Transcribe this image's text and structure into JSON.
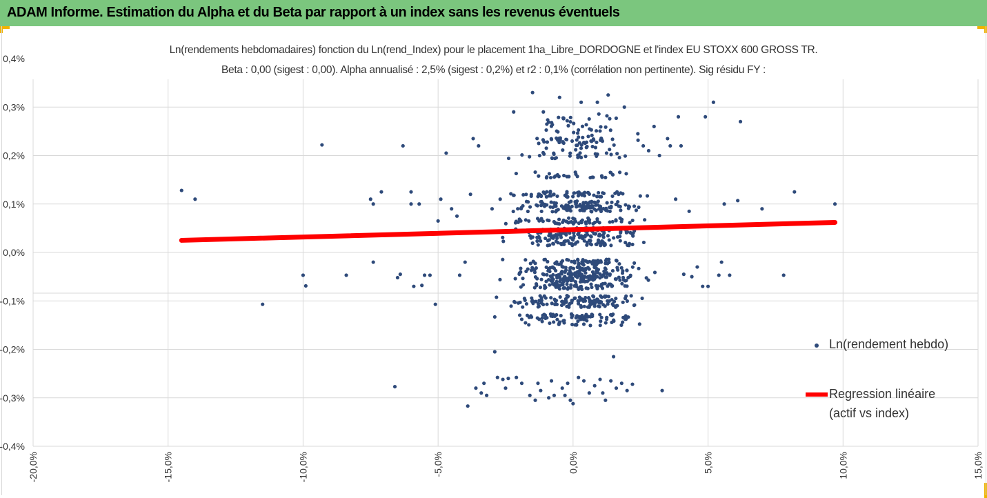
{
  "header": {
    "title": "ADAM Informe. Estimation du Alpha et du Beta par rapport à un index sans les revenus éventuels"
  },
  "colors": {
    "header_bg": "#7bc67e",
    "corner": "#f0b400",
    "points": "#2e4a7a",
    "regression": "#ff0000",
    "grid": "#d9d9d9"
  },
  "chart_data": {
    "type": "scatter",
    "title_line1": "Ln(rendements hebdomadaires) fonction du Ln(rend_Index) pour le placement 1ha_Libre_DORDOGNE et l'index EU STOXX 600 GROSS TR.",
    "title_line2": "Beta : 0,00 (sigest : 0,00). Alpha annualisé : 2,5% (sigest : 0,2%) et r2 : 0,1% (corrélation non pertinente). Sig résidu FY :",
    "xlim": [
      -20,
      15
    ],
    "ylim": [
      -0.4,
      0.4
    ],
    "x_ticks": [
      "-20,0%",
      "-15,0%",
      "-10,0%",
      "-5,0%",
      "0,0%",
      "5,0%",
      "10,0%",
      "15,0%"
    ],
    "y_ticks": [
      "0,4%",
      "0,3%",
      "0,2%",
      "0,1%",
      "0,0%",
      "-0,1%",
      "-0,2%",
      "-0,3%",
      "-0,4%"
    ],
    "grid": true,
    "legend_position": "right",
    "series": [
      {
        "name": "Ln(rendement hebdo)",
        "type": "scatter",
        "points": [
          [
            -14.5,
            0.128
          ],
          [
            -14,
            0.11
          ],
          [
            -11.5,
            -0.107
          ],
          [
            -9.3,
            0.222
          ],
          [
            -10,
            -0.047
          ],
          [
            -9.9,
            -0.069
          ],
          [
            -8.4,
            -0.047
          ],
          [
            -7.5,
            0.11
          ],
          [
            -7.4,
            0.1
          ],
          [
            -7.4,
            -0.02
          ],
          [
            -7.1,
            0.125
          ],
          [
            -6.6,
            -0.277
          ],
          [
            -6.3,
            0.22
          ],
          [
            -6.5,
            -0.052
          ],
          [
            -6.4,
            -0.045
          ],
          [
            -6,
            0.125
          ],
          [
            -6,
            0.1
          ],
          [
            -5.9,
            -0.07
          ],
          [
            -5.7,
            0.1
          ],
          [
            -5.6,
            -0.068
          ],
          [
            -5.5,
            -0.047
          ],
          [
            -5.3,
            -0.047
          ],
          [
            -5.1,
            -0.107
          ],
          [
            -5,
            0.065
          ],
          [
            -4.9,
            0.11
          ],
          [
            -4.7,
            0.205
          ],
          [
            -4.5,
            0.09
          ],
          [
            -4.3,
            0.075
          ],
          [
            -4.2,
            -0.047
          ],
          [
            -4.0,
            -0.02
          ],
          [
            -3.9,
            -0.317
          ],
          [
            -3.8,
            0.12
          ],
          [
            -3.7,
            0.235
          ],
          [
            -3.5,
            0.22
          ],
          [
            -3.6,
            -0.28
          ],
          [
            -3.4,
            -0.29
          ],
          [
            -3.3,
            -0.27
          ],
          [
            -3.2,
            -0.295
          ],
          [
            -3,
            0.09
          ],
          [
            -2.9,
            -0.205
          ],
          [
            -2.9,
            -0.133
          ],
          [
            -2.8,
            -0.258
          ],
          [
            -2.7,
            0.11
          ],
          [
            -2.6,
            -0.262
          ],
          [
            -2.5,
            -0.28
          ],
          [
            -2.4,
            -0.26
          ],
          [
            -2.2,
            0.29
          ],
          [
            -2.1,
            -0.258
          ],
          [
            -1.9,
            -0.27
          ],
          [
            -1.8,
            -0.095
          ],
          [
            -1.6,
            -0.295
          ],
          [
            -1.5,
            0.33
          ],
          [
            -1.4,
            -0.305
          ],
          [
            -1.3,
            -0.27
          ],
          [
            -1.1,
            0.29
          ],
          [
            -1.2,
            -0.285
          ],
          [
            -0.9,
            -0.3
          ],
          [
            -0.8,
            -0.265
          ],
          [
            -0.7,
            -0.295
          ],
          [
            -0.5,
            0.32
          ],
          [
            -0.4,
            -0.28
          ],
          [
            -0.3,
            -0.295
          ],
          [
            -0.2,
            -0.27
          ],
          [
            -0.1,
            -0.305
          ],
          [
            0,
            -0.312
          ],
          [
            0.2,
            -0.258
          ],
          [
            0.3,
            0.31
          ],
          [
            0.4,
            -0.265
          ],
          [
            0.6,
            -0.29
          ],
          [
            0.8,
            -0.275
          ],
          [
            0.9,
            0.31
          ],
          [
            1,
            -0.262
          ],
          [
            1.1,
            -0.29
          ],
          [
            1.2,
            -0.305
          ],
          [
            1.3,
            0.325
          ],
          [
            1.4,
            -0.265
          ],
          [
            1.5,
            -0.215
          ],
          [
            1.6,
            -0.28
          ],
          [
            1.8,
            -0.27
          ],
          [
            1.9,
            0.3
          ],
          [
            2,
            -0.285
          ],
          [
            2.2,
            -0.272
          ],
          [
            2.4,
            0.245
          ],
          [
            2.6,
            0.22
          ],
          [
            2.8,
            0.21
          ],
          [
            3.0,
            0.26
          ],
          [
            3.2,
            0.2
          ],
          [
            3.3,
            -0.285
          ],
          [
            3.5,
            0.235
          ],
          [
            3.6,
            0.22
          ],
          [
            3.8,
            0.11
          ],
          [
            3.9,
            0.28
          ],
          [
            4.0,
            0.22
          ],
          [
            4.1,
            -0.045
          ],
          [
            4.3,
            0.085
          ],
          [
            4.4,
            -0.05
          ],
          [
            4.6,
            -0.03
          ],
          [
            4.8,
            -0.07
          ],
          [
            4.9,
            0.28
          ],
          [
            5.0,
            -0.07
          ],
          [
            5.2,
            0.31
          ],
          [
            5.4,
            -0.047
          ],
          [
            5.5,
            -0.02
          ],
          [
            5.6,
            0.1
          ],
          [
            5.8,
            -0.047
          ],
          [
            6.1,
            0.107
          ],
          [
            6.2,
            0.27
          ],
          [
            7.0,
            0.09
          ],
          [
            7.8,
            -0.047
          ],
          [
            8.2,
            0.125
          ],
          [
            9.7,
            0.1
          ]
        ]
      },
      {
        "name": "Regression linéaire (actif vs index)",
        "type": "line",
        "x": [
          -14.5,
          9.7
        ],
        "y": [
          0.025,
          0.062
        ]
      }
    ],
    "legend": {
      "scatter_label": "Ln(rendement hebdo)",
      "line_label_1": "Regression linéaire",
      "line_label_2": "(actif vs index)"
    }
  }
}
